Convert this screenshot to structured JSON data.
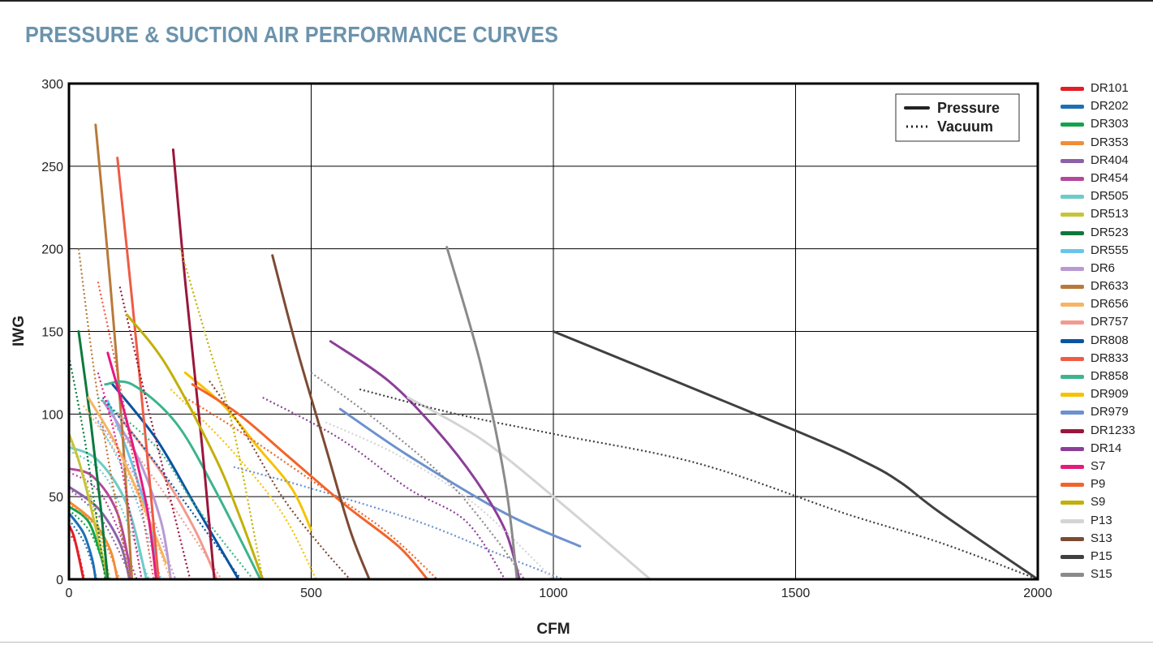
{
  "title": "PRESSURE & SUCTION AIR PERFORMANCE CURVES",
  "chart_data": {
    "type": "line",
    "xlabel": "CFM",
    "ylabel": "IWG",
    "xlim": [
      0,
      2000
    ],
    "ylim": [
      0,
      300
    ],
    "x_ticks": [
      "0",
      "500",
      "1000",
      "1500",
      "2000"
    ],
    "y_ticks": [
      "0",
      "50",
      "100",
      "150",
      "200",
      "250",
      "300"
    ],
    "grid": true,
    "style_legend": {
      "placement": "top-right",
      "entries": [
        {
          "label": "Pressure",
          "dash": "solid"
        },
        {
          "label": "Vacuum",
          "dash": "dotted"
        }
      ]
    },
    "series": [
      {
        "name": "DR101",
        "color": "#e31e24",
        "pressure": [
          [
            0,
            33
          ],
          [
            10,
            26
          ],
          [
            20,
            14
          ],
          [
            30,
            0
          ]
        ],
        "vacuum": [
          [
            0,
            28
          ],
          [
            16,
            20
          ],
          [
            32,
            0
          ]
        ]
      },
      {
        "name": "DR202",
        "color": "#1f6fb5",
        "pressure": [
          [
            0,
            40
          ],
          [
            30,
            28
          ],
          [
            48,
            12
          ],
          [
            55,
            0
          ]
        ],
        "vacuum": [
          [
            0,
            36
          ],
          [
            32,
            22
          ],
          [
            58,
            0
          ]
        ]
      },
      {
        "name": "DR303",
        "color": "#12a34a",
        "pressure": [
          [
            0,
            44
          ],
          [
            40,
            35
          ],
          [
            65,
            15
          ],
          [
            78,
            0
          ]
        ],
        "vacuum": [
          [
            0,
            42
          ],
          [
            45,
            28
          ],
          [
            82,
            0
          ]
        ]
      },
      {
        "name": "DR353",
        "color": "#f28c38",
        "pressure": [
          [
            0,
            47
          ],
          [
            50,
            35
          ],
          [
            85,
            18
          ],
          [
            100,
            0
          ]
        ],
        "vacuum": [
          [
            0,
            46
          ],
          [
            60,
            30
          ],
          [
            105,
            0
          ]
        ]
      },
      {
        "name": "DR404",
        "color": "#8b62a8",
        "pressure": [
          [
            0,
            56
          ],
          [
            60,
            43
          ],
          [
            105,
            22
          ],
          [
            125,
            0
          ]
        ],
        "vacuum": [
          [
            0,
            55
          ],
          [
            70,
            35
          ],
          [
            130,
            0
          ]
        ]
      },
      {
        "name": "DR454",
        "color": "#b5479b",
        "pressure": [
          [
            0,
            67
          ],
          [
            50,
            62
          ],
          [
            100,
            40
          ],
          [
            130,
            0
          ]
        ],
        "vacuum": [
          [
            0,
            65
          ],
          [
            70,
            50
          ],
          [
            140,
            0
          ]
        ]
      },
      {
        "name": "DR505",
        "color": "#6ecbc8",
        "pressure": [
          [
            0,
            80
          ],
          [
            60,
            72
          ],
          [
            120,
            45
          ],
          [
            160,
            0
          ]
        ],
        "vacuum": [
          [
            0,
            78
          ],
          [
            80,
            60
          ],
          [
            165,
            0
          ]
        ]
      },
      {
        "name": "DR513",
        "color": "#c6c43a",
        "pressure": [
          [
            0,
            88
          ],
          [
            20,
            72
          ],
          [
            40,
            50
          ],
          [
            60,
            25
          ],
          [
            80,
            0
          ]
        ],
        "vacuum": [
          [
            0,
            86
          ],
          [
            45,
            50
          ],
          [
            85,
            0
          ]
        ]
      },
      {
        "name": "DR523",
        "color": "#0a7a3c",
        "pressure": [
          [
            20,
            150
          ],
          [
            45,
            95
          ],
          [
            65,
            45
          ],
          [
            80,
            0
          ]
        ],
        "vacuum": [
          [
            0,
            135
          ],
          [
            35,
            80
          ],
          [
            75,
            0
          ]
        ]
      },
      {
        "name": "DR555",
        "color": "#68c5ea",
        "pressure": [
          [
            80,
            108
          ],
          [
            130,
            70
          ],
          [
            170,
            30
          ],
          [
            185,
            0
          ]
        ],
        "vacuum": [
          [
            60,
            95
          ],
          [
            130,
            55
          ],
          [
            190,
            0
          ]
        ]
      },
      {
        "name": "DR6",
        "color": "#b79ad3",
        "pressure": [
          [
            70,
            108
          ],
          [
            140,
            75
          ],
          [
            190,
            35
          ],
          [
            210,
            0
          ]
        ],
        "vacuum": [
          [
            50,
            100
          ],
          [
            140,
            60
          ],
          [
            220,
            0
          ]
        ]
      },
      {
        "name": "DR633",
        "color": "#b87a3a",
        "pressure": [
          [
            55,
            275
          ],
          [
            85,
            180
          ],
          [
            110,
            90
          ],
          [
            130,
            0
          ]
        ],
        "vacuum": [
          [
            20,
            200
          ],
          [
            60,
            110
          ],
          [
            125,
            0
          ]
        ]
      },
      {
        "name": "DR656",
        "color": "#f6b467",
        "pressure": [
          [
            40,
            110
          ],
          [
            100,
            80
          ],
          [
            160,
            40
          ],
          [
            200,
            10
          ]
        ],
        "vacuum": [
          [
            30,
            105
          ],
          [
            120,
            65
          ],
          [
            210,
            0
          ]
        ]
      },
      {
        "name": "DR757",
        "color": "#f39a8f",
        "pressure": [
          [
            100,
            100
          ],
          [
            190,
            65
          ],
          [
            260,
            30
          ],
          [
            305,
            0
          ]
        ],
        "vacuum": [
          [
            90,
            95
          ],
          [
            190,
            55
          ],
          [
            315,
            0
          ]
        ]
      },
      {
        "name": "DR808",
        "color": "#0b54a0",
        "pressure": [
          [
            90,
            118
          ],
          [
            180,
            85
          ],
          [
            260,
            45
          ],
          [
            350,
            0
          ]
        ],
        "vacuum": [
          [
            70,
            110
          ],
          [
            180,
            70
          ],
          [
            355,
            0
          ]
        ]
      },
      {
        "name": "DR833",
        "color": "#ef5b45",
        "pressure": [
          [
            100,
            255
          ],
          [
            130,
            170
          ],
          [
            160,
            80
          ],
          [
            185,
            0
          ]
        ],
        "vacuum": [
          [
            60,
            180
          ],
          [
            110,
            110
          ],
          [
            175,
            0
          ]
        ]
      },
      {
        "name": "DR858",
        "color": "#3db48d",
        "pressure": [
          [
            75,
            118
          ],
          [
            130,
            118
          ],
          [
            220,
            95
          ],
          [
            300,
            55
          ],
          [
            395,
            0
          ]
        ],
        "vacuum": [
          [
            60,
            110
          ],
          [
            180,
            80
          ],
          [
            260,
            45
          ],
          [
            380,
            0
          ]
        ]
      },
      {
        "name": "DR909",
        "color": "#f6c200",
        "pressure": [
          [
            240,
            125
          ],
          [
            320,
            105
          ],
          [
            390,
            80
          ],
          [
            460,
            55
          ],
          [
            500,
            30
          ]
        ],
        "vacuum": [
          [
            210,
            115
          ],
          [
            330,
            80
          ],
          [
            440,
            40
          ],
          [
            510,
            0
          ]
        ]
      },
      {
        "name": "DR979",
        "color": "#6c91cf",
        "pressure": [
          [
            560,
            103
          ],
          [
            700,
            75
          ],
          [
            900,
            40
          ],
          [
            1055,
            20
          ]
        ],
        "vacuum": [
          [
            340,
            68
          ],
          [
            500,
            55
          ],
          [
            720,
            35
          ],
          [
            890,
            15
          ],
          [
            1020,
            0
          ]
        ]
      },
      {
        "name": "DR1233",
        "color": "#99163c",
        "pressure": [
          [
            215,
            260
          ],
          [
            240,
            180
          ],
          [
            275,
            80
          ],
          [
            300,
            0
          ]
        ],
        "vacuum": [
          [
            105,
            177
          ],
          [
            150,
            120
          ],
          [
            200,
            60
          ],
          [
            250,
            0
          ]
        ]
      },
      {
        "name": "DR14",
        "color": "#8b3f97",
        "pressure": [
          [
            540,
            144
          ],
          [
            660,
            120
          ],
          [
            760,
            90
          ],
          [
            840,
            60
          ],
          [
            900,
            30
          ],
          [
            930,
            0
          ]
        ],
        "vacuum": [
          [
            400,
            110
          ],
          [
            560,
            85
          ],
          [
            700,
            55
          ],
          [
            820,
            35
          ],
          [
            900,
            0
          ]
        ]
      },
      {
        "name": "S7",
        "color": "#e6197f",
        "pressure": [
          [
            80,
            137
          ],
          [
            120,
            95
          ],
          [
            160,
            45
          ],
          [
            180,
            0
          ]
        ],
        "vacuum": [
          [
            60,
            125
          ],
          [
            100,
            80
          ],
          [
            150,
            0
          ]
        ]
      },
      {
        "name": "P9",
        "color": "#f1652c",
        "pressure": [
          [
            255,
            118
          ],
          [
            350,
            100
          ],
          [
            450,
            75
          ],
          [
            570,
            45
          ],
          [
            680,
            20
          ],
          [
            740,
            0
          ]
        ],
        "vacuum": [
          [
            240,
            110
          ],
          [
            350,
            90
          ],
          [
            500,
            60
          ],
          [
            650,
            30
          ],
          [
            760,
            0
          ]
        ]
      },
      {
        "name": "S9",
        "color": "#c2b00a",
        "pressure": [
          [
            120,
            160
          ],
          [
            200,
            130
          ],
          [
            300,
            75
          ],
          [
            350,
            40
          ],
          [
            400,
            0
          ]
        ],
        "vacuum": [
          [
            230,
            200
          ],
          [
            290,
            140
          ],
          [
            340,
            90
          ],
          [
            400,
            0
          ]
        ]
      },
      {
        "name": "P13",
        "color": "#d4d4d4",
        "pressure": [
          [
            700,
            110
          ],
          [
            850,
            85
          ],
          [
            1000,
            50
          ],
          [
            1200,
            0
          ]
        ],
        "vacuum": [
          [
            530,
            95
          ],
          [
            680,
            75
          ],
          [
            840,
            45
          ],
          [
            1000,
            0
          ]
        ]
      },
      {
        "name": "S13",
        "color": "#7d4a34",
        "pressure": [
          [
            420,
            196
          ],
          [
            470,
            140
          ],
          [
            530,
            80
          ],
          [
            580,
            30
          ],
          [
            620,
            0
          ]
        ],
        "vacuum": [
          [
            290,
            120
          ],
          [
            360,
            90
          ],
          [
            440,
            50
          ],
          [
            520,
            20
          ],
          [
            580,
            0
          ]
        ]
      },
      {
        "name": "P15",
        "color": "#404040",
        "pressure": [
          [
            1000,
            150
          ],
          [
            1500,
            90
          ],
          [
            1650,
            70
          ],
          [
            1720,
            58
          ],
          [
            1800,
            40
          ],
          [
            2000,
            0
          ]
        ],
        "vacuum": [
          [
            600,
            115
          ],
          [
            800,
            100
          ],
          [
            1000,
            88
          ],
          [
            1300,
            70
          ],
          [
            1600,
            40
          ],
          [
            1800,
            22
          ],
          [
            2000,
            0
          ]
        ]
      },
      {
        "name": "S15",
        "color": "#8a8a8a",
        "pressure": [
          [
            780,
            201
          ],
          [
            850,
            130
          ],
          [
            900,
            60
          ],
          [
            925,
            0
          ]
        ],
        "vacuum": [
          [
            500,
            125
          ],
          [
            640,
            95
          ],
          [
            780,
            60
          ],
          [
            880,
            25
          ],
          [
            940,
            0
          ]
        ]
      }
    ]
  }
}
